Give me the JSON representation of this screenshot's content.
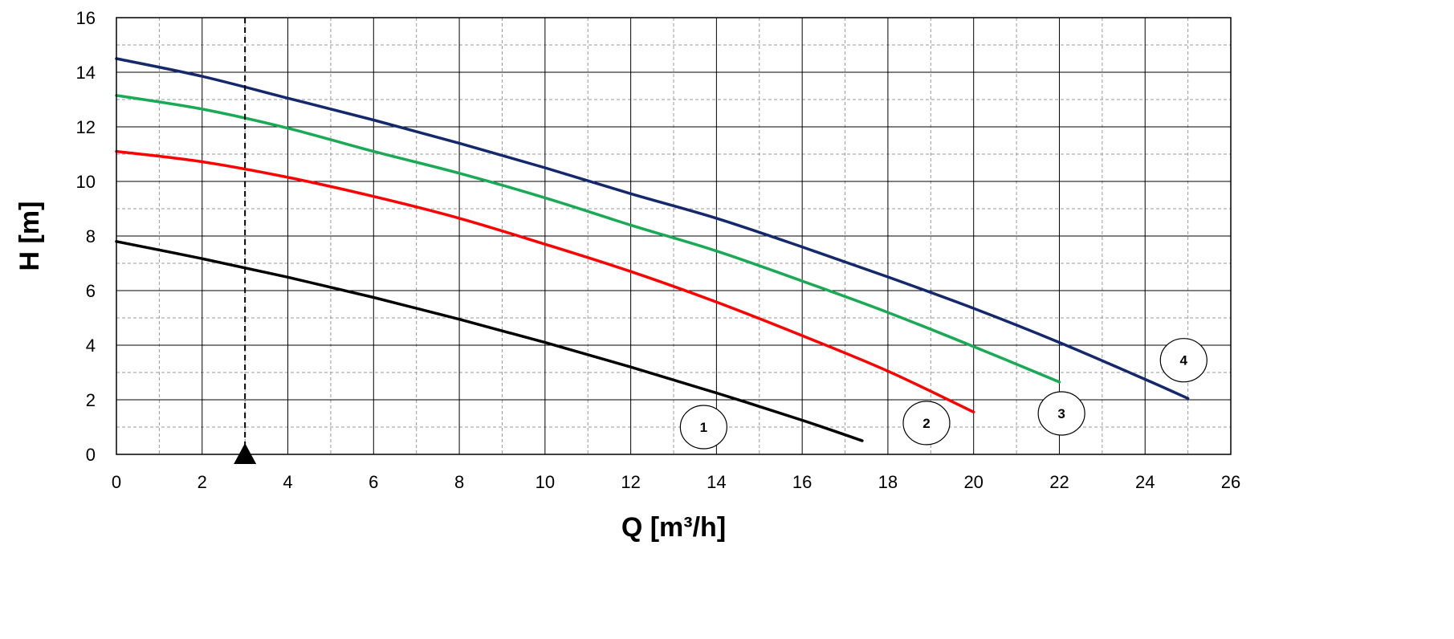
{
  "chart_data": {
    "type": "line",
    "title": "",
    "xlabel": "Q [m³/h]",
    "ylabel": "H [m]",
    "xlim": [
      0,
      26
    ],
    "ylim": [
      0,
      16
    ],
    "x_ticks": [
      0,
      2,
      4,
      6,
      8,
      10,
      12,
      14,
      16,
      18,
      20,
      22,
      24,
      26
    ],
    "y_ticks": [
      0,
      2,
      4,
      6,
      8,
      10,
      12,
      14,
      16
    ],
    "grid": true,
    "minor_grid": "dashed, every 1 on x and 1 on y",
    "legend": "none",
    "series": [
      {
        "name": "1",
        "color": "#000000",
        "points": [
          [
            0,
            7.8
          ],
          [
            2,
            7.17
          ],
          [
            4,
            6.49
          ],
          [
            6,
            5.75
          ],
          [
            8,
            4.95
          ],
          [
            10,
            4.1
          ],
          [
            12,
            3.2
          ],
          [
            14,
            2.25
          ],
          [
            16,
            1.25
          ],
          [
            17.4,
            0.5
          ]
        ]
      },
      {
        "name": "2",
        "color": "#ff0000",
        "points": [
          [
            0,
            11.1
          ],
          [
            2,
            10.72
          ],
          [
            4,
            10.15
          ],
          [
            6,
            9.45
          ],
          [
            8,
            8.65
          ],
          [
            10,
            7.7
          ],
          [
            12,
            6.7
          ],
          [
            14,
            5.58
          ],
          [
            16,
            4.35
          ],
          [
            18,
            3.05
          ],
          [
            20,
            1.55
          ]
        ]
      },
      {
        "name": "3",
        "color": "#1aaa55",
        "points": [
          [
            0,
            13.15
          ],
          [
            2,
            12.65
          ],
          [
            4,
            11.95
          ],
          [
            6,
            11.1
          ],
          [
            8,
            10.3
          ],
          [
            10,
            9.4
          ],
          [
            12,
            8.4
          ],
          [
            14,
            7.45
          ],
          [
            16,
            6.35
          ],
          [
            18,
            5.2
          ],
          [
            20,
            3.95
          ],
          [
            22,
            2.65
          ]
        ]
      },
      {
        "name": "4",
        "color": "#14286e",
        "points": [
          [
            0,
            14.5
          ],
          [
            2,
            13.85
          ],
          [
            4,
            13.05
          ],
          [
            6,
            12.25
          ],
          [
            8,
            11.4
          ],
          [
            10,
            10.5
          ],
          [
            12,
            9.55
          ],
          [
            14,
            8.65
          ],
          [
            16,
            7.6
          ],
          [
            18,
            6.5
          ],
          [
            20,
            5.35
          ],
          [
            22,
            4.1
          ],
          [
            24,
            2.75
          ],
          [
            25,
            2.05
          ]
        ]
      }
    ],
    "annotations": [
      {
        "type": "vertical-dashed-line",
        "x": 3
      },
      {
        "type": "triangle-marker",
        "x": 3,
        "y": 0
      },
      {
        "type": "curve-label",
        "text": "1",
        "x": 13.7,
        "y": 1.0
      },
      {
        "type": "curve-label",
        "text": "2",
        "x": 18.9,
        "y": 1.15
      },
      {
        "type": "curve-label",
        "text": "3",
        "x": 22.05,
        "y": 1.5
      },
      {
        "type": "curve-label",
        "text": "4",
        "x": 24.9,
        "y": 3.45
      }
    ]
  }
}
